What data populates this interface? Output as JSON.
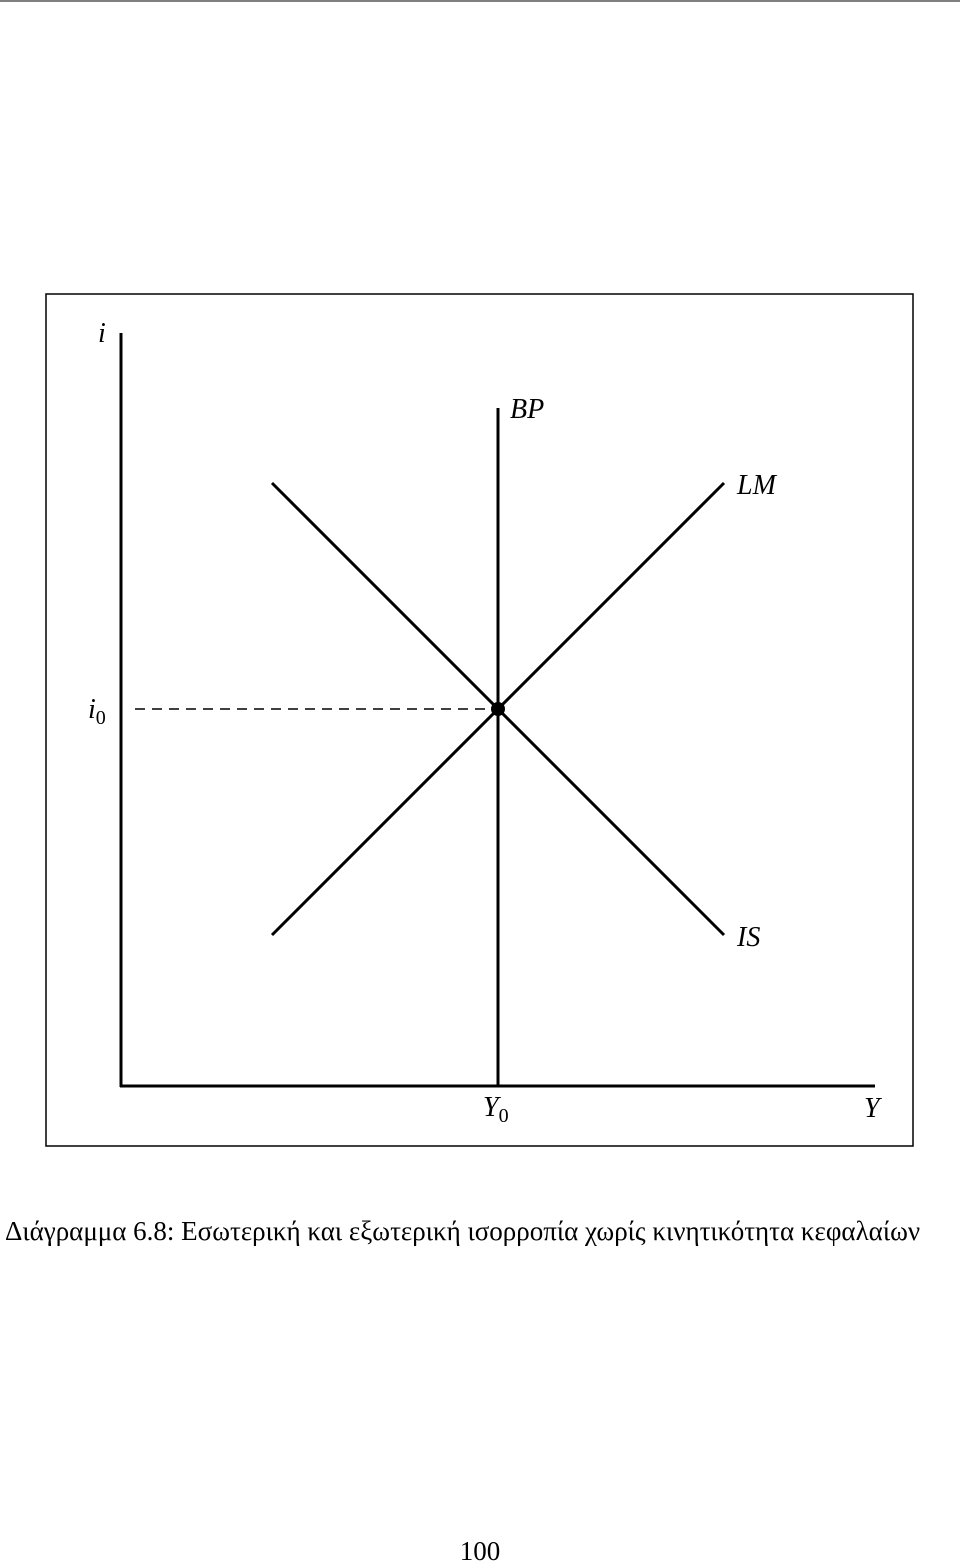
{
  "diagram": {
    "axis_labels": {
      "vertical": "i",
      "horizontal": "Y"
    },
    "curves": {
      "bp": "BP",
      "lm": "LM",
      "is": "IS"
    },
    "equilibrium": {
      "rate": {
        "base": "i",
        "sub": "0"
      },
      "income": {
        "base": "Y",
        "sub": "0"
      }
    }
  },
  "caption": "Διάγραμμα 6.8: Εσωτερική και εξωτερική ισορροπία χωρίς κινητικότητα κεφαλαίων",
  "page_number": "100"
}
